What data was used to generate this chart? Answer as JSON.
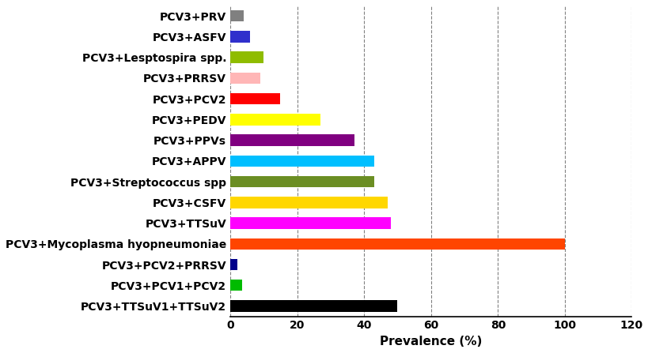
{
  "categories": [
    "PCV3+TTSuV1+TTSuV2",
    "PCV3+PCV1+PCV2",
    "PCV3+PCV2+PRRSV",
    "PCV3+Mycoplasma hyopneumoniae",
    "PCV3+TTSuV",
    "PCV3+CSFV",
    "PCV3+Streptococcus spp",
    "PCV3+APPV",
    "PCV3+PPVs",
    "PCV3+PEDV",
    "PCV3+PCV2",
    "PCV3+PRRSV",
    "PCV3+Lesptospira spp.",
    "PCV3+ASFV",
    "PCV3+PRV"
  ],
  "values": [
    50,
    3.5,
    2,
    100,
    48,
    47,
    43,
    43,
    37,
    27,
    15,
    9,
    10,
    6,
    4
  ],
  "colors": [
    "#000000",
    "#00bb00",
    "#00008b",
    "#ff4500",
    "#ff00ff",
    "#ffd700",
    "#6b8e23",
    "#00bfff",
    "#800080",
    "#ffff00",
    "#ff0000",
    "#ffb6b6",
    "#8fbc00",
    "#3030cc",
    "#808080"
  ],
  "xlabel": "Prevalence (%)",
  "xlim": [
    0,
    120
  ],
  "xticks": [
    0,
    20,
    40,
    60,
    80,
    100,
    120
  ],
  "bar_height": 0.55,
  "label_fontsize": 11,
  "tick_fontsize": 10,
  "ytick_fontsize": 10
}
